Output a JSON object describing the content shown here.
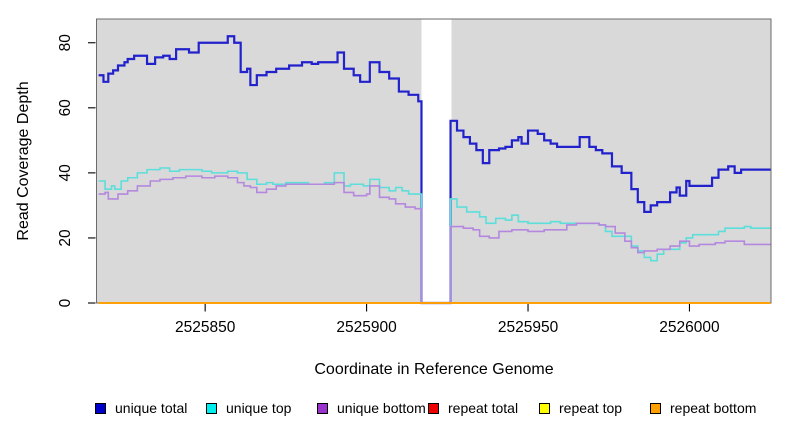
{
  "figure": {
    "background": "#FFFFFF",
    "text_color": "#000000",
    "box_color": "#6B6B6B",
    "tick_color": "#000000"
  },
  "chart_data": {
    "type": "line",
    "subtype": "step",
    "title": "",
    "xlabel": "Coordinate in Reference Genome",
    "ylabel": "Read Coverage Depth",
    "xlim": [
      2525816.5,
      2526025.1
    ],
    "ylim": [
      0,
      87.3
    ],
    "xticks": [
      2525850,
      2525900,
      2525950,
      2526000
    ],
    "yticks": [
      0,
      20,
      40,
      60,
      80
    ],
    "grid": false,
    "plot_bg": "#D9D9D9",
    "legend_position": "bottom",
    "gap_region": {
      "x_start": 2525917,
      "x_end": 2525926.3,
      "fill": "#FFFFFF"
    },
    "series": [
      {
        "name": "unique total",
        "color": "#2222CC",
        "legend_color": "#0000CC",
        "width": 2.2,
        "points": [
          [
            2525817,
            70
          ],
          [
            2525818.5,
            68
          ],
          [
            2525820,
            70.5
          ],
          [
            2525821.5,
            71.5
          ],
          [
            2525823,
            73
          ],
          [
            2525825,
            74
          ],
          [
            2525826,
            75
          ],
          [
            2525828,
            76
          ],
          [
            2525830,
            76
          ],
          [
            2525832,
            73.5
          ],
          [
            2525834.5,
            75.5
          ],
          [
            2525837,
            76
          ],
          [
            2525839,
            75
          ],
          [
            2525841,
            78
          ],
          [
            2525845,
            77
          ],
          [
            2525848,
            80
          ],
          [
            2525853,
            80
          ],
          [
            2525857,
            82
          ],
          [
            2525859,
            80
          ],
          [
            2525861,
            71
          ],
          [
            2525863,
            72
          ],
          [
            2525864,
            67
          ],
          [
            2525866,
            70
          ],
          [
            2525869,
            71
          ],
          [
            2525872,
            72
          ],
          [
            2525876,
            73
          ],
          [
            2525880,
            74
          ],
          [
            2525883,
            73.5
          ],
          [
            2525885,
            74
          ],
          [
            2525891,
            77
          ],
          [
            2525893,
            72
          ],
          [
            2525896,
            70
          ],
          [
            2525898,
            68
          ],
          [
            2525901,
            74
          ],
          [
            2525904,
            71
          ],
          [
            2525907,
            69
          ],
          [
            2525910,
            65
          ],
          [
            2525913,
            64
          ],
          [
            2525916,
            62
          ],
          [
            2525917,
            0
          ],
          [
            2525926,
            56
          ],
          [
            2525928,
            53
          ],
          [
            2525930,
            51
          ],
          [
            2525932,
            49
          ],
          [
            2525934,
            47
          ],
          [
            2525936,
            43
          ],
          [
            2525938,
            47
          ],
          [
            2525941,
            47.5
          ],
          [
            2525943,
            48
          ],
          [
            2525945,
            50
          ],
          [
            2525947,
            51
          ],
          [
            2525948,
            49
          ],
          [
            2525950,
            53
          ],
          [
            2525953,
            52
          ],
          [
            2525955,
            50
          ],
          [
            2525957,
            49
          ],
          [
            2525959,
            48
          ],
          [
            2525966,
            51
          ],
          [
            2525969,
            48
          ],
          [
            2525971,
            47
          ],
          [
            2525973,
            46
          ],
          [
            2525976,
            42
          ],
          [
            2525979,
            40
          ],
          [
            2525982,
            35
          ],
          [
            2525984,
            31
          ],
          [
            2525986,
            28
          ],
          [
            2525988,
            30
          ],
          [
            2525990,
            31
          ],
          [
            2525994,
            34
          ],
          [
            2525996,
            35.5
          ],
          [
            2525997,
            33
          ],
          [
            2525999,
            37.5
          ],
          [
            2526000,
            36
          ],
          [
            2526007,
            38.5
          ],
          [
            2526009,
            41
          ],
          [
            2526012,
            42
          ],
          [
            2526014,
            40
          ],
          [
            2526016,
            41
          ],
          [
            2526025,
            41
          ]
        ]
      },
      {
        "name": "unique top",
        "color": "#5CDEDA",
        "legend_color": "#00EEEE",
        "width": 1.6,
        "points": [
          [
            2525817,
            37.5
          ],
          [
            2525819,
            35
          ],
          [
            2525821,
            36
          ],
          [
            2525822,
            35
          ],
          [
            2525824,
            37.5
          ],
          [
            2525826,
            38.5
          ],
          [
            2525829,
            40
          ],
          [
            2525832,
            41
          ],
          [
            2525836,
            41.5
          ],
          [
            2525839,
            40.5
          ],
          [
            2525842,
            41
          ],
          [
            2525849,
            40.5
          ],
          [
            2525852,
            40
          ],
          [
            2525857,
            40.5
          ],
          [
            2525860,
            40
          ],
          [
            2525863,
            38
          ],
          [
            2525866,
            36.5
          ],
          [
            2525869,
            37
          ],
          [
            2525871,
            36.5
          ],
          [
            2525875,
            37
          ],
          [
            2525882,
            36.5
          ],
          [
            2525887,
            37
          ],
          [
            2525890,
            40
          ],
          [
            2525893,
            36
          ],
          [
            2525895,
            36.5
          ],
          [
            2525899,
            36
          ],
          [
            2525901,
            38
          ],
          [
            2525904,
            35.5
          ],
          [
            2525907,
            34.5
          ],
          [
            2525909,
            35.5
          ],
          [
            2525911,
            34.5
          ],
          [
            2525913,
            33.5
          ],
          [
            2525917,
            0
          ],
          [
            2525926,
            32
          ],
          [
            2525928,
            29.5
          ],
          [
            2525931,
            28
          ],
          [
            2525935,
            26.5
          ],
          [
            2525937,
            24.5
          ],
          [
            2525940,
            26
          ],
          [
            2525943,
            25.5
          ],
          [
            2525945,
            27
          ],
          [
            2525947,
            25
          ],
          [
            2525950,
            24.5
          ],
          [
            2525957,
            25
          ],
          [
            2525960,
            24.5
          ],
          [
            2525972,
            24
          ],
          [
            2525974,
            22
          ],
          [
            2525976,
            20.5
          ],
          [
            2525982,
            17.5
          ],
          [
            2525984,
            16
          ],
          [
            2525986,
            14
          ],
          [
            2525988,
            13
          ],
          [
            2525990,
            15
          ],
          [
            2525992,
            16.5
          ],
          [
            2525997,
            18.5
          ],
          [
            2525999,
            20
          ],
          [
            2526001,
            21
          ],
          [
            2526009,
            22
          ],
          [
            2526011,
            23
          ],
          [
            2526017,
            23.5
          ],
          [
            2526019,
            23
          ],
          [
            2526025,
            23
          ]
        ]
      },
      {
        "name": "unique bottom",
        "color": "#B488DE",
        "legend_color": "#9933CC",
        "width": 1.6,
        "points": [
          [
            2525817,
            33.5
          ],
          [
            2525819,
            34
          ],
          [
            2525820,
            32
          ],
          [
            2525823,
            33.5
          ],
          [
            2525826,
            34.5
          ],
          [
            2525829,
            36
          ],
          [
            2525833,
            37.5
          ],
          [
            2525836,
            38
          ],
          [
            2525840,
            38.5
          ],
          [
            2525844,
            39
          ],
          [
            2525849,
            38.5
          ],
          [
            2525853,
            39
          ],
          [
            2525857,
            38.5
          ],
          [
            2525860,
            37
          ],
          [
            2525862,
            36
          ],
          [
            2525864,
            35.5
          ],
          [
            2525866,
            34
          ],
          [
            2525869,
            35
          ],
          [
            2525872,
            36
          ],
          [
            2525875,
            36.5
          ],
          [
            2525887,
            36.5
          ],
          [
            2525890,
            37
          ],
          [
            2525893,
            34
          ],
          [
            2525896,
            33
          ],
          [
            2525900,
            33.5
          ],
          [
            2525901,
            36
          ],
          [
            2525904,
            32.5
          ],
          [
            2525907,
            32
          ],
          [
            2525909,
            30.5
          ],
          [
            2525912,
            29.5
          ],
          [
            2525915,
            29
          ],
          [
            2525917,
            0
          ],
          [
            2525926,
            23.5
          ],
          [
            2525930,
            23
          ],
          [
            2525933,
            22.5
          ],
          [
            2525935,
            20.5
          ],
          [
            2525938,
            20
          ],
          [
            2525941,
            22
          ],
          [
            2525945,
            22.5
          ],
          [
            2525950,
            22
          ],
          [
            2525955,
            22.5
          ],
          [
            2525962,
            24
          ],
          [
            2525965,
            24.5
          ],
          [
            2525972,
            24
          ],
          [
            2525974,
            23.5
          ],
          [
            2525977,
            21.5
          ],
          [
            2525980,
            19
          ],
          [
            2525982,
            17
          ],
          [
            2525984,
            15.5
          ],
          [
            2525986,
            16
          ],
          [
            2525990,
            16.5
          ],
          [
            2525994,
            17.5
          ],
          [
            2525997,
            19
          ],
          [
            2526000,
            17.5
          ],
          [
            2526003,
            18
          ],
          [
            2526008,
            18.5
          ],
          [
            2526011,
            19
          ],
          [
            2526017,
            18
          ],
          [
            2526025,
            18
          ]
        ]
      },
      {
        "name": "repeat total",
        "color": "#DD0000",
        "legend_color": "#EE0000",
        "width": 1.6,
        "points": [
          [
            2525817,
            0
          ],
          [
            2526025,
            0
          ]
        ]
      },
      {
        "name": "repeat top",
        "color": "#FFFF00",
        "legend_color": "#FFFF00",
        "width": 1.6,
        "points": [
          [
            2525817,
            0
          ],
          [
            2526025,
            0
          ]
        ]
      },
      {
        "name": "repeat bottom",
        "color": "#FF9D00",
        "legend_color": "#FFA000",
        "width": 1.8,
        "points": [
          [
            2525817,
            0
          ],
          [
            2526025,
            0
          ]
        ]
      }
    ]
  }
}
